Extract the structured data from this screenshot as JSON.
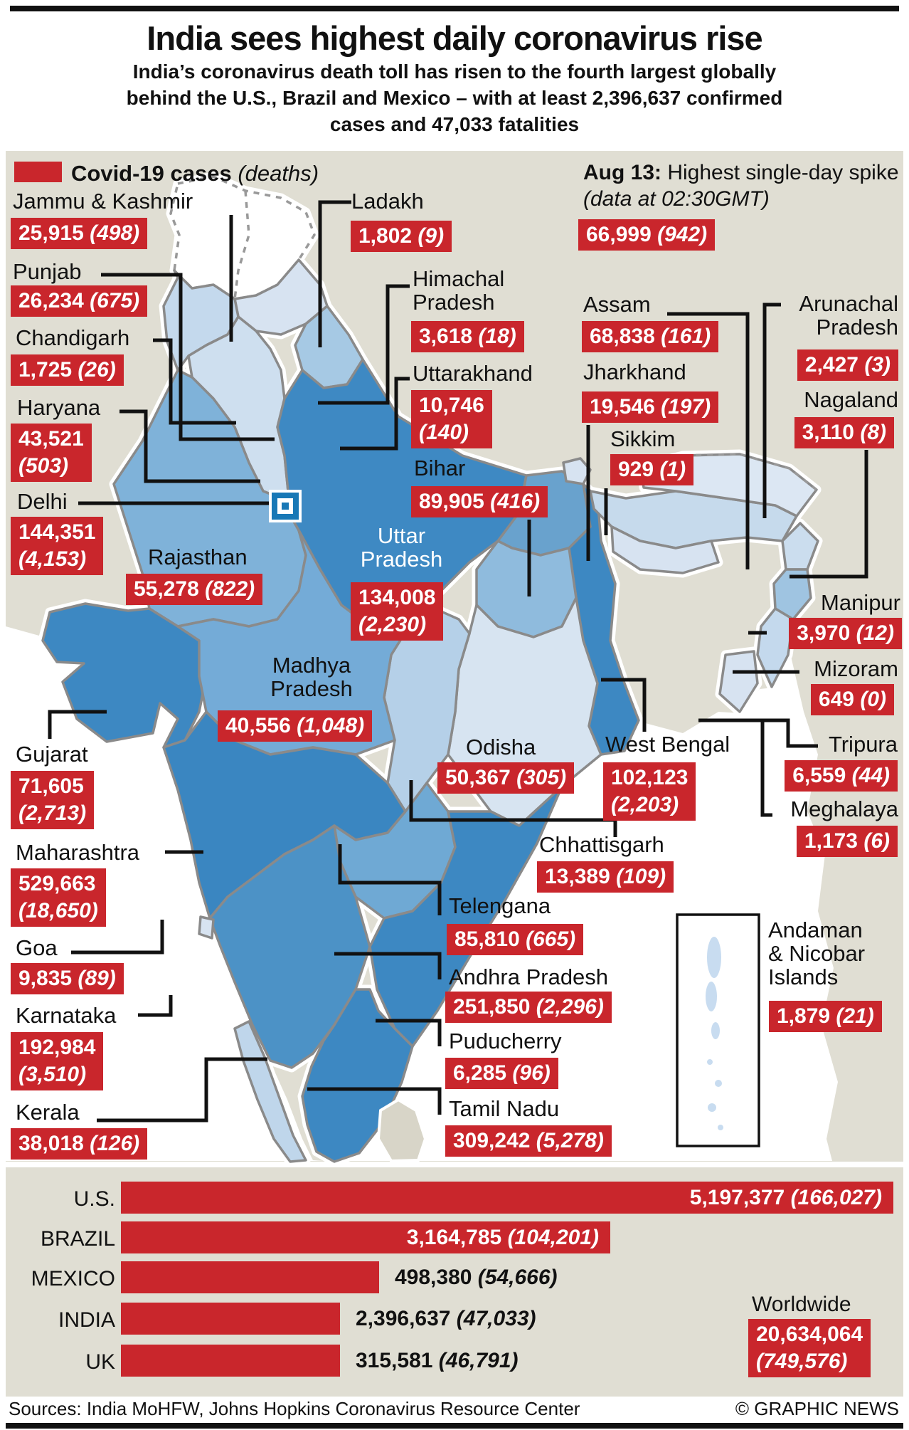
{
  "header": {
    "title": "India sees highest daily coronavirus rise",
    "subtitle": "India’s coronavirus death toll has risen to the fourth largest globally\nbehind the U.S., Brazil and Mexico – with at least 2,396,637 confirmed\ncases and 47,033 fatalities"
  },
  "legend": {
    "label": "Covid-19 cases",
    "note": "(deaths)"
  },
  "spike_note": {
    "date": "Aug 13:",
    "text": " Highest single-day spike ",
    "note": "(data at 02:30GMT)",
    "cases": "66,999",
    "deaths": "942"
  },
  "colors": {
    "accent_red": "#C9262C",
    "panel_beige": "#E0DED3",
    "dark_state_blue": "#3D88C2"
  },
  "map": {
    "regions": [
      {
        "id": "jammu-kashmir",
        "name": "Jammu & Kashmir",
        "cases": "25,915",
        "deaths": "498"
      },
      {
        "id": "ladakh",
        "name": "Ladakh",
        "cases": "1,802",
        "deaths": "9"
      },
      {
        "id": "punjab",
        "name": "Punjab",
        "cases": "26,234",
        "deaths": "675"
      },
      {
        "id": "chandigarh",
        "name": "Chandigarh",
        "cases": "1,725",
        "deaths": "26"
      },
      {
        "id": "haryana",
        "name": "Haryana",
        "cases": "43,521",
        "deaths": "503"
      },
      {
        "id": "delhi",
        "name": "Delhi",
        "cases": "144,351",
        "deaths": "4,153"
      },
      {
        "id": "himachal",
        "name": "Himachal\nPradesh",
        "cases": "3,618",
        "deaths": "18"
      },
      {
        "id": "uttarakhand",
        "name": "Uttarakhand",
        "cases": "10,746",
        "deaths": "140"
      },
      {
        "id": "bihar",
        "name": "Bihar",
        "cases": "89,905",
        "deaths": "416"
      },
      {
        "id": "rajasthan",
        "name": "Rajasthan",
        "cases": "55,278",
        "deaths": "822"
      },
      {
        "id": "uttar-pradesh",
        "name": "Uttar\nPradesh",
        "cases": "134,008",
        "deaths": "2,230"
      },
      {
        "id": "madhya-pradesh",
        "name": "Madhya\nPradesh",
        "cases": "40,556",
        "deaths": "1,048"
      },
      {
        "id": "gujarat",
        "name": "Gujarat",
        "cases": "71,605",
        "deaths": "2,713"
      },
      {
        "id": "maharashtra",
        "name": "Maharashtra",
        "cases": "529,663",
        "deaths": "18,650"
      },
      {
        "id": "goa",
        "name": "Goa",
        "cases": "9,835",
        "deaths": "89"
      },
      {
        "id": "karnataka",
        "name": "Karnataka",
        "cases": "192,984",
        "deaths": "3,510"
      },
      {
        "id": "kerala",
        "name": "Kerala",
        "cases": "38,018",
        "deaths": "126"
      },
      {
        "id": "assam",
        "name": "Assam",
        "cases": "68,838",
        "deaths": "161"
      },
      {
        "id": "jharkhand",
        "name": "Jharkhand",
        "cases": "19,546",
        "deaths": "197"
      },
      {
        "id": "sikkim",
        "name": "Sikkim",
        "cases": "929",
        "deaths": "1"
      },
      {
        "id": "arunachal",
        "name": "Arunachal\nPradesh",
        "cases": "2,427",
        "deaths": "3"
      },
      {
        "id": "nagaland",
        "name": "Nagaland",
        "cases": "3,110",
        "deaths": "8"
      },
      {
        "id": "manipur",
        "name": "Manipur",
        "cases": "3,970",
        "deaths": "12"
      },
      {
        "id": "mizoram",
        "name": "Mizoram",
        "cases": "649",
        "deaths": "0"
      },
      {
        "id": "tripura",
        "name": "Tripura",
        "cases": "6,559",
        "deaths": "44"
      },
      {
        "id": "meghalaya",
        "name": "Meghalaya",
        "cases": "1,173",
        "deaths": "6"
      },
      {
        "id": "west-bengal",
        "name": "West Bengal",
        "cases": "102,123",
        "deaths": "2,203"
      },
      {
        "id": "odisha",
        "name": "Odisha",
        "cases": "50,367",
        "deaths": "305"
      },
      {
        "id": "chhattisgarh",
        "name": "Chhattisgarh",
        "cases": "13,389",
        "deaths": "109"
      },
      {
        "id": "telengana",
        "name": "Telengana",
        "cases": "85,810",
        "deaths": "665"
      },
      {
        "id": "andhra",
        "name": "Andhra Pradesh",
        "cases": "251,850",
        "deaths": "2,296"
      },
      {
        "id": "puducherry",
        "name": "Puducherry",
        "cases": "6,285",
        "deaths": "96"
      },
      {
        "id": "tamil-nadu",
        "name": "Tamil Nadu",
        "cases": "309,242",
        "deaths": "5,278"
      },
      {
        "id": "andaman",
        "name": "Andaman\n& Nicobar\nIslands",
        "cases": "1,879",
        "deaths": "21"
      }
    ]
  },
  "chart_data": {
    "type": "bar",
    "orientation": "horizontal",
    "categories": [
      "U.S.",
      "BRAZIL",
      "MEXICO",
      "INDIA",
      "UK"
    ],
    "series": [
      {
        "name": "cases",
        "values": [
          5197377,
          3164785,
          498380,
          2396637,
          315581
        ]
      },
      {
        "name": "deaths",
        "values": [
          166027,
          104201,
          54666,
          47033,
          46791
        ]
      }
    ],
    "value_labels": [
      {
        "cases": "5,197,377",
        "deaths": "166,027"
      },
      {
        "cases": "3,164,785",
        "deaths": "104,201"
      },
      {
        "cases": "498,380",
        "deaths": "54,666"
      },
      {
        "cases": "2,396,637",
        "deaths": "47,033"
      },
      {
        "cases": "315,581",
        "deaths": "46,791"
      }
    ],
    "legend_position": "none",
    "grid": false,
    "worldwide": {
      "label": "Worldwide",
      "cases": "20,634,064",
      "deaths": "749,576"
    }
  },
  "footer": {
    "sources": "Sources: India MoHFW, Johns Hopkins Coronavirus Resource Center",
    "credit": "© GRAPHIC NEWS"
  }
}
